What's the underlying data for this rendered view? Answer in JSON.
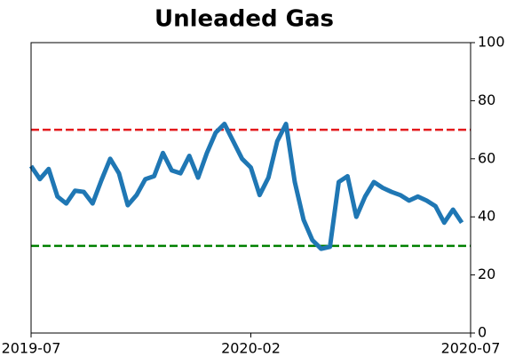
{
  "chart_data": {
    "type": "line",
    "title": "Unleaded Gas",
    "x": [
      0,
      2,
      4,
      6,
      8,
      10,
      12,
      14,
      16,
      18,
      20,
      22,
      24,
      26,
      28,
      30,
      32,
      34,
      36,
      38,
      40,
      42,
      44,
      46,
      48,
      50,
      52,
      54,
      56,
      58,
      60,
      62,
      64,
      66,
      68,
      70,
      72,
      74,
      76,
      78,
      80,
      82,
      84,
      86,
      88,
      90,
      92,
      94,
      96,
      98
    ],
    "series": [
      {
        "name": "Unleaded Gas",
        "color": "#1f77b4",
        "values": [
          57.5,
          53,
          56.5,
          47,
          44.6,
          49,
          48.6,
          44.6,
          52.6,
          60,
          55,
          44,
          47.5,
          53,
          54,
          62,
          56,
          55,
          61,
          53.5,
          62,
          69,
          72,
          66,
          60,
          57,
          47.5,
          53.5,
          66,
          72,
          52,
          39,
          32,
          29,
          29.7,
          52,
          54,
          40,
          47,
          52,
          50,
          48.6,
          47.5,
          45.6,
          47,
          45.6,
          43.7,
          38,
          42.5,
          38
        ]
      }
    ],
    "xlim": [
      0,
      100
    ],
    "xticks": [
      {
        "value": 0,
        "label": "2019-07"
      },
      {
        "value": 50,
        "label": "2020-02"
      },
      {
        "value": 100,
        "label": "2020-07"
      }
    ],
    "ylim": [
      0,
      100
    ],
    "yticks": [
      0,
      20,
      40,
      60,
      80,
      100
    ],
    "y_axis_side": "right",
    "hlines": [
      {
        "value": 70,
        "color": "#e31a1c"
      },
      {
        "value": 30,
        "color": "#008000"
      }
    ]
  }
}
